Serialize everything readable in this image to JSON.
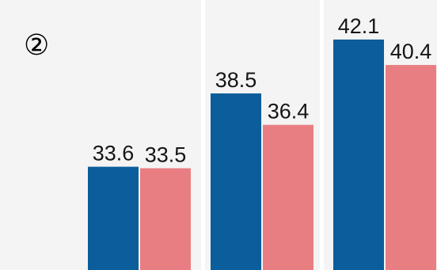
{
  "marker": "②",
  "colors": {
    "series_a": "#0b5d9c",
    "series_b": "#e97e82",
    "panel": "#f4f4f4",
    "separator": "#ffffff"
  },
  "chart_data": {
    "type": "bar",
    "title": "",
    "xlabel": "",
    "ylabel": "",
    "categories": [
      "",
      "",
      ""
    ],
    "series": [
      {
        "values": [
          33.6,
          38.5,
          42.1
        ]
      },
      {
        "values": [
          33.5,
          36.4,
          40.4
        ]
      }
    ],
    "ylim": [
      26.7,
      43
    ],
    "grid": false,
    "legend": "none"
  }
}
